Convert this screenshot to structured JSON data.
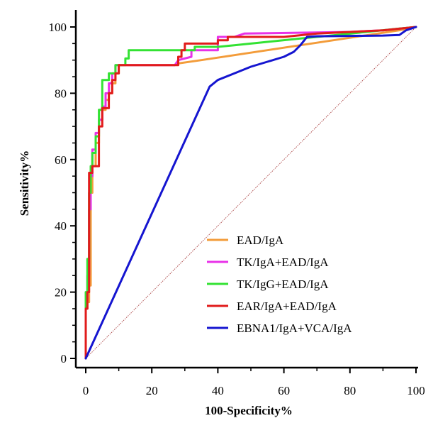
{
  "chart_data": {
    "type": "line",
    "title": "",
    "xlabel": "100-Specificity%",
    "ylabel": "Sensitivity%",
    "xlim": [
      0,
      100
    ],
    "ylim": [
      0,
      100
    ],
    "x_ticks": [
      "0",
      "20",
      "40",
      "60",
      "80",
      "100"
    ],
    "y_ticks": [
      "0",
      "20",
      "40",
      "60",
      "80",
      "100"
    ],
    "grid": false,
    "legend_position": "bottom-right",
    "reference_line": {
      "x": [
        0,
        100
      ],
      "y": [
        0,
        100
      ],
      "color": "#b05050",
      "style": "dotted"
    },
    "series": [
      {
        "name": "EAD/IgA",
        "color": "#f39c3a",
        "points": [
          [
            0,
            0
          ],
          [
            0,
            15
          ],
          [
            0.5,
            15
          ],
          [
            0.5,
            17
          ],
          [
            1,
            17
          ],
          [
            1,
            22
          ],
          [
            1.5,
            22
          ],
          [
            1.5,
            50
          ],
          [
            2,
            50
          ],
          [
            2,
            58
          ],
          [
            3,
            58
          ],
          [
            3,
            65
          ],
          [
            4,
            65
          ],
          [
            4,
            72
          ],
          [
            5,
            72
          ],
          [
            5,
            75
          ],
          [
            6,
            75
          ],
          [
            6,
            78
          ],
          [
            7,
            78
          ],
          [
            7,
            80
          ],
          [
            8,
            80
          ],
          [
            8,
            83
          ],
          [
            9,
            83
          ],
          [
            9,
            86
          ],
          [
            10,
            86
          ],
          [
            10,
            88.5
          ],
          [
            27,
            88.5
          ],
          [
            28,
            89
          ],
          [
            35,
            90
          ],
          [
            45,
            91.5
          ],
          [
            55,
            93
          ],
          [
            65,
            94.5
          ],
          [
            75,
            96
          ],
          [
            85,
            97.5
          ],
          [
            95,
            99
          ],
          [
            100,
            100
          ]
        ]
      },
      {
        "name": "TK/IgA+EAD/IgA",
        "color": "#e832e8",
        "points": [
          [
            0,
            0
          ],
          [
            0,
            18
          ],
          [
            0.5,
            18
          ],
          [
            0.5,
            25
          ],
          [
            1,
            25
          ],
          [
            1,
            45
          ],
          [
            1.5,
            45
          ],
          [
            1.5,
            55
          ],
          [
            2,
            55
          ],
          [
            2,
            63
          ],
          [
            3,
            63
          ],
          [
            3,
            68
          ],
          [
            4,
            68
          ],
          [
            4,
            72
          ],
          [
            5,
            72
          ],
          [
            5,
            76
          ],
          [
            6,
            76
          ],
          [
            6,
            80
          ],
          [
            7,
            80
          ],
          [
            7,
            83
          ],
          [
            8,
            83
          ],
          [
            8,
            86
          ],
          [
            9,
            86
          ],
          [
            9,
            88.5
          ],
          [
            27,
            88.5
          ],
          [
            28,
            90
          ],
          [
            32,
            91
          ],
          [
            32,
            93
          ],
          [
            40,
            93
          ],
          [
            40,
            97
          ],
          [
            45,
            97
          ],
          [
            48,
            98
          ],
          [
            80,
            98.5
          ],
          [
            90,
            99
          ],
          [
            100,
            100
          ]
        ]
      },
      {
        "name": "TK/IgG+EAD/IgA",
        "color": "#33e233",
        "points": [
          [
            0,
            0
          ],
          [
            0,
            20
          ],
          [
            0.5,
            20
          ],
          [
            0.5,
            30
          ],
          [
            1,
            30
          ],
          [
            1,
            50
          ],
          [
            1.5,
            50
          ],
          [
            1.5,
            58
          ],
          [
            2,
            58
          ],
          [
            2,
            62
          ],
          [
            3,
            62
          ],
          [
            3,
            67
          ],
          [
            4,
            67
          ],
          [
            4,
            75
          ],
          [
            5,
            75
          ],
          [
            5,
            84
          ],
          [
            7,
            84
          ],
          [
            7,
            86
          ],
          [
            9,
            86
          ],
          [
            9,
            88.5
          ],
          [
            12,
            88.5
          ],
          [
            12,
            90.5
          ],
          [
            13,
            90.5
          ],
          [
            13,
            93
          ],
          [
            33,
            93
          ],
          [
            33,
            94
          ],
          [
            40,
            94
          ],
          [
            45,
            94.5
          ],
          [
            55,
            95.5
          ],
          [
            65,
            96.5
          ],
          [
            75,
            97.5
          ],
          [
            85,
            98.5
          ],
          [
            95,
            99.5
          ],
          [
            100,
            100
          ]
        ]
      },
      {
        "name": "EAR/IgA+EAD/IgA",
        "color": "#e11b1b",
        "points": [
          [
            0,
            0
          ],
          [
            0,
            15
          ],
          [
            0.5,
            15
          ],
          [
            0.5,
            20
          ],
          [
            1,
            20
          ],
          [
            1,
            56
          ],
          [
            2,
            56
          ],
          [
            2,
            58
          ],
          [
            4,
            58
          ],
          [
            4,
            70
          ],
          [
            5,
            70
          ],
          [
            5,
            75.5
          ],
          [
            7,
            75.5
          ],
          [
            7,
            80
          ],
          [
            8,
            80
          ],
          [
            8,
            84
          ],
          [
            9,
            84
          ],
          [
            9,
            86
          ],
          [
            10,
            86
          ],
          [
            10,
            88.5
          ],
          [
            28,
            88.5
          ],
          [
            28,
            91
          ],
          [
            29,
            91
          ],
          [
            29,
            93
          ],
          [
            30,
            93
          ],
          [
            30,
            95
          ],
          [
            40,
            95
          ],
          [
            40,
            96
          ],
          [
            43,
            96
          ],
          [
            43,
            97
          ],
          [
            60,
            97
          ],
          [
            70,
            98
          ],
          [
            80,
            98.5
          ],
          [
            90,
            99
          ],
          [
            100,
            100
          ]
        ]
      },
      {
        "name": "EBNA1/IgA+VCA/IgA",
        "color": "#1515d0",
        "points": [
          [
            0,
            0
          ],
          [
            37.5,
            82
          ],
          [
            40,
            84
          ],
          [
            45,
            86
          ],
          [
            50,
            88
          ],
          [
            55,
            89.5
          ],
          [
            60,
            91
          ],
          [
            63,
            92.5
          ],
          [
            65,
            94.5
          ],
          [
            67,
            97
          ],
          [
            70,
            97.2
          ],
          [
            80,
            97.3
          ],
          [
            90,
            97.4
          ],
          [
            95,
            97.6
          ],
          [
            97,
            99
          ],
          [
            100,
            100
          ]
        ]
      }
    ]
  }
}
